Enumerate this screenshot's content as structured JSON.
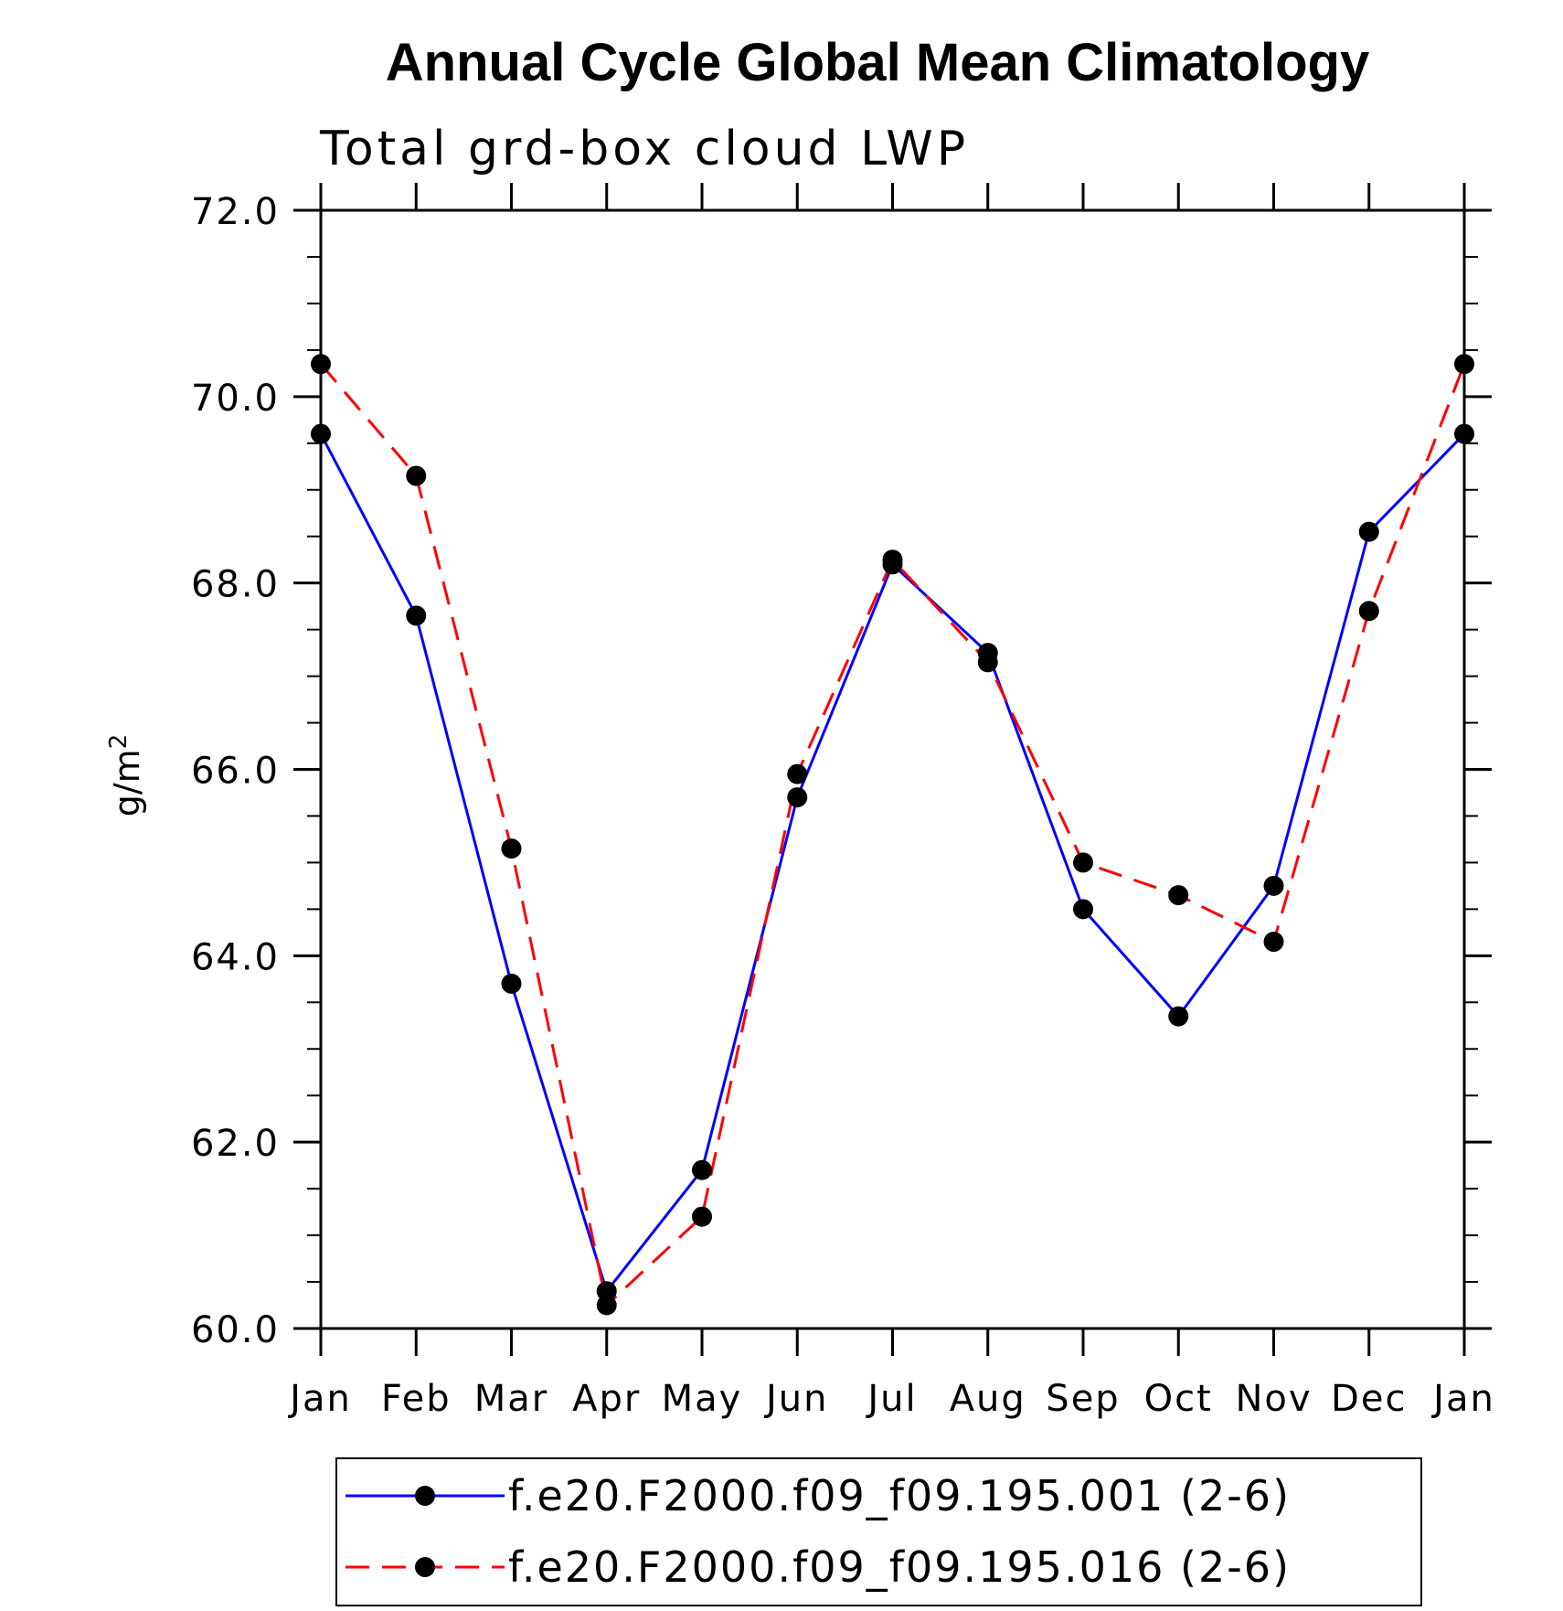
{
  "chart_data": {
    "type": "line",
    "title": "Annual Cycle Global Mean Climatology",
    "subtitle": "Total grd-box cloud LWP",
    "ylabel": "g/m",
    "ylabel_superscript": "2",
    "categories": [
      "Jan",
      "Feb",
      "Mar",
      "Apr",
      "May",
      "Jun",
      "Jul",
      "Aug",
      "Sep",
      "Oct",
      "Nov",
      "Dec",
      "Jan"
    ],
    "ylim": [
      60.0,
      72.0
    ],
    "ytick_labels": [
      "60.0",
      "62.0",
      "64.0",
      "66.0",
      "68.0",
      "70.0",
      "72.0"
    ],
    "series": [
      {
        "name": "f.e20.F2000.f09_f09.195.001 (2-6)",
        "color": "#0000ff",
        "style": "solid",
        "values": [
          69.6,
          67.65,
          63.7,
          60.4,
          61.7,
          65.7,
          68.2,
          67.25,
          64.5,
          63.35,
          64.75,
          68.55,
          69.6
        ]
      },
      {
        "name": "f.e20.F2000.f09_f09.195.016 (2-6)",
        "color": "#ff0000",
        "style": "dashed",
        "values": [
          70.35,
          69.15,
          65.15,
          60.25,
          61.2,
          65.95,
          68.25,
          67.15,
          65.0,
          64.65,
          64.15,
          67.7,
          70.35
        ]
      }
    ],
    "marker": "filled-circle",
    "marker_color": "#000000",
    "legend_position": "bottom-center"
  }
}
